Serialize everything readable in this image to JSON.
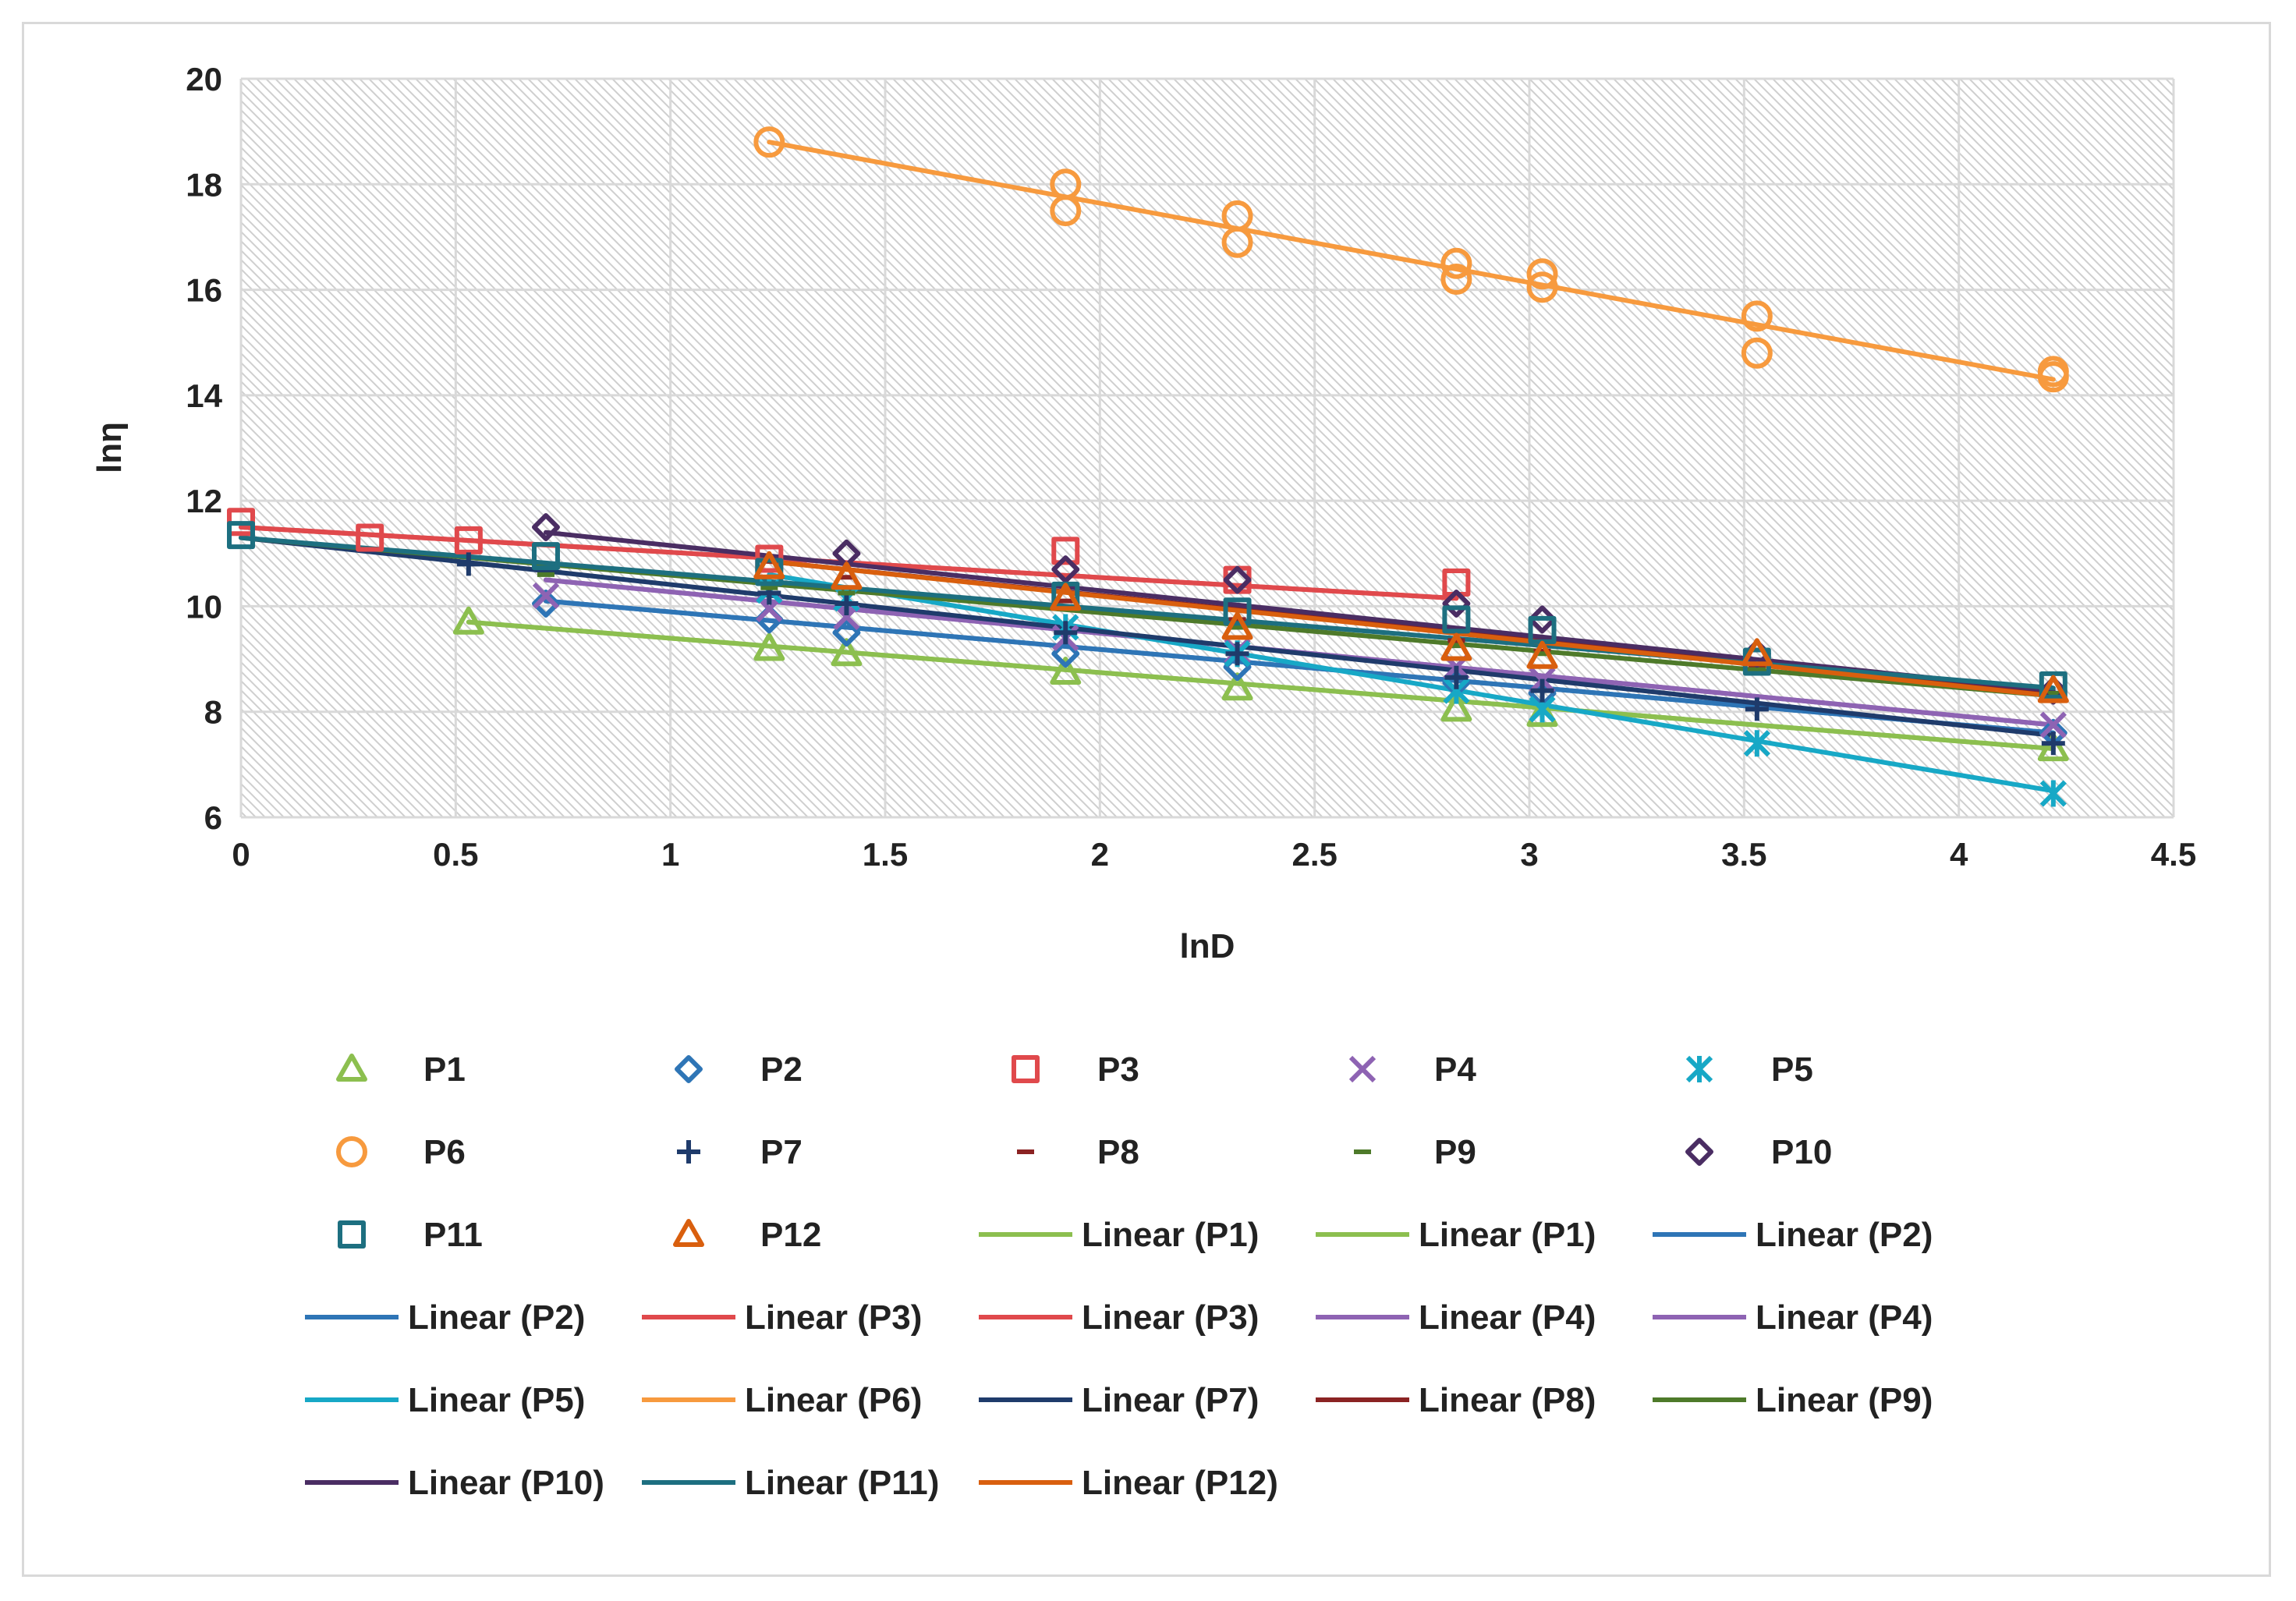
{
  "chart_data": {
    "type": "scatter",
    "title": "",
    "xlabel": "lnD",
    "ylabel": "lnη",
    "xlim": [
      0,
      4.5
    ],
    "ylim": [
      6,
      20
    ],
    "xticks": [
      0,
      0.5,
      1,
      1.5,
      2,
      2.5,
      3,
      3.5,
      4,
      4.5
    ],
    "xtick_labels": [
      "0",
      "0.5",
      "1",
      "1.5",
      "2",
      "2.5",
      "3",
      "3.5",
      "4",
      "4.5"
    ],
    "yticks": [
      6,
      8,
      10,
      12,
      14,
      16,
      18,
      20
    ],
    "ytick_labels": [
      "6",
      "8",
      "10",
      "12",
      "14",
      "16",
      "18",
      "20"
    ],
    "grid": true,
    "legend_position": "bottom",
    "series": [
      {
        "name": "P1",
        "marker": "triangle",
        "color": "#8cbf4f",
        "x": [
          0.53,
          1.23,
          1.41,
          1.92,
          2.32,
          2.83,
          3.03,
          4.22
        ],
        "y": [
          9.7,
          9.2,
          9.1,
          8.75,
          8.45,
          8.05,
          7.95,
          7.3
        ]
      },
      {
        "name": "P2",
        "marker": "diamond",
        "color": "#2e75b6",
        "x": [
          0.71,
          1.23,
          1.41,
          1.92,
          2.32,
          2.83,
          3.03,
          4.22
        ],
        "y": [
          10.05,
          9.75,
          9.5,
          9.1,
          8.85,
          8.55,
          8.35,
          7.6
        ]
      },
      {
        "name": "P3",
        "marker": "square",
        "color": "#e0494c",
        "x": [
          0.0,
          0.3,
          0.53,
          1.23,
          1.92,
          2.32,
          2.83
        ],
        "y": [
          11.6,
          11.3,
          11.25,
          10.9,
          11.05,
          10.5,
          10.45
        ]
      },
      {
        "name": "P4",
        "marker": "x",
        "color": "#8e63b3",
        "x": [
          0.71,
          1.23,
          1.41,
          1.92,
          2.32,
          2.83,
          3.03,
          4.22
        ],
        "y": [
          10.2,
          9.95,
          9.8,
          9.4,
          9.15,
          8.85,
          8.6,
          7.75
        ]
      },
      {
        "name": "P5",
        "marker": "star",
        "color": "#17a8c6",
        "x": [
          1.23,
          1.41,
          1.92,
          2.32,
          2.83,
          3.03,
          3.53,
          4.22
        ],
        "y": [
          10.3,
          10.15,
          9.6,
          9.1,
          8.4,
          8.05,
          7.4,
          6.45
        ]
      },
      {
        "name": "P6",
        "marker": "circle",
        "color": "#f79a3e",
        "x": [
          1.23,
          1.92,
          1.92,
          2.32,
          2.32,
          2.83,
          2.83,
          3.03,
          3.03,
          3.53,
          3.53,
          4.22,
          4.22
        ],
        "y": [
          18.8,
          18.0,
          17.5,
          17.4,
          16.9,
          16.5,
          16.2,
          16.3,
          16.05,
          15.5,
          14.8,
          14.45,
          14.35
        ]
      },
      {
        "name": "P7",
        "marker": "plus",
        "color": "#1f3b6b",
        "x": [
          0.53,
          1.23,
          1.41,
          1.92,
          2.32,
          2.83,
          3.03,
          3.53,
          4.22
        ],
        "y": [
          10.8,
          10.25,
          10.05,
          9.5,
          9.1,
          8.65,
          8.4,
          8.05,
          7.4
        ]
      },
      {
        "name": "P8",
        "marker": "dash",
        "color": "#8b2323",
        "x": [
          1.23,
          1.41,
          1.92,
          2.32,
          2.83,
          3.03,
          3.53,
          4.22
        ],
        "y": [
          10.85,
          10.55,
          10.1,
          9.75,
          9.35,
          9.15,
          8.85,
          8.35
        ]
      },
      {
        "name": "P9",
        "marker": "dash",
        "color": "#4e7a2a",
        "x": [
          0.71,
          1.23,
          1.41,
          1.92,
          2.32,
          2.83,
          3.03,
          3.53,
          4.22
        ],
        "y": [
          10.6,
          10.35,
          10.25,
          9.95,
          9.6,
          9.25,
          9.1,
          8.8,
          8.35
        ]
      },
      {
        "name": "P10",
        "marker": "diamond",
        "color": "#4a2d63",
        "x": [
          0.71,
          1.41,
          1.92,
          2.32,
          2.83,
          3.03,
          3.53,
          4.22
        ],
        "y": [
          11.5,
          11.0,
          10.7,
          10.5,
          10.05,
          9.75,
          9.1,
          8.4
        ]
      },
      {
        "name": "P11",
        "marker": "square",
        "color": "#1d6f80",
        "x": [
          0.0,
          0.71,
          1.23,
          1.92,
          2.32,
          2.83,
          3.03,
          3.53,
          4.22
        ],
        "y": [
          11.35,
          10.95,
          10.65,
          10.2,
          9.9,
          9.75,
          9.55,
          8.95,
          8.5
        ]
      },
      {
        "name": "P12",
        "marker": "triangle",
        "color": "#d95f0e",
        "x": [
          1.23,
          1.41,
          1.92,
          2.32,
          2.83,
          3.03,
          3.53,
          4.22
        ],
        "y": [
          10.75,
          10.55,
          10.15,
          9.6,
          9.2,
          9.05,
          9.1,
          8.4
        ]
      }
    ],
    "trendlines": [
      {
        "name": "Linear (P1)",
        "color": "#8cbf4f",
        "x": [
          0.53,
          4.22
        ],
        "y": [
          9.7,
          7.3
        ]
      },
      {
        "name": "Linear (P1)",
        "color": "#8cbf4f",
        "x": [
          0.53,
          4.22
        ],
        "y": [
          9.7,
          7.3
        ]
      },
      {
        "name": "Linear (P2)",
        "color": "#2e75b6",
        "x": [
          0.71,
          4.22
        ],
        "y": [
          10.1,
          7.6
        ]
      },
      {
        "name": "Linear (P2)",
        "color": "#2e75b6",
        "x": [
          0.71,
          4.22
        ],
        "y": [
          10.1,
          7.6
        ]
      },
      {
        "name": "Linear (P3)",
        "color": "#e0494c",
        "x": [
          0.0,
          2.83
        ],
        "y": [
          11.5,
          10.15
        ]
      },
      {
        "name": "Linear (P3)",
        "color": "#e0494c",
        "x": [
          0.0,
          2.83
        ],
        "y": [
          11.5,
          10.15
        ]
      },
      {
        "name": "Linear (P4)",
        "color": "#8e63b3",
        "x": [
          0.71,
          4.22
        ],
        "y": [
          10.5,
          7.75
        ]
      },
      {
        "name": "Linear (P4)",
        "color": "#8e63b3",
        "x": [
          0.71,
          4.22
        ],
        "y": [
          10.5,
          7.75
        ]
      },
      {
        "name": "Linear (P5)",
        "color": "#17a8c6",
        "x": [
          1.23,
          4.22
        ],
        "y": [
          10.6,
          6.5
        ]
      },
      {
        "name": "Linear (P6)",
        "color": "#f79a3e",
        "x": [
          1.23,
          4.22
        ],
        "y": [
          18.8,
          14.3
        ]
      },
      {
        "name": "Linear (P7)",
        "color": "#1f3b6b",
        "x": [
          0.0,
          4.22
        ],
        "y": [
          11.3,
          7.55
        ]
      },
      {
        "name": "Linear (P8)",
        "color": "#8b2323",
        "x": [
          1.23,
          4.22
        ],
        "y": [
          10.85,
          8.35
        ]
      },
      {
        "name": "Linear (P9)",
        "color": "#4e7a2a",
        "x": [
          0.0,
          4.22
        ],
        "y": [
          11.3,
          8.3
        ]
      },
      {
        "name": "Linear (P10)",
        "color": "#4a2d63",
        "x": [
          0.71,
          4.22
        ],
        "y": [
          11.4,
          8.4
        ]
      },
      {
        "name": "Linear (P11)",
        "color": "#1d6f80",
        "x": [
          0.0,
          4.22
        ],
        "y": [
          11.3,
          8.45
        ]
      },
      {
        "name": "Linear (P12)",
        "color": "#d95f0e",
        "x": [
          1.23,
          4.22
        ],
        "y": [
          10.85,
          8.3
        ]
      }
    ]
  }
}
